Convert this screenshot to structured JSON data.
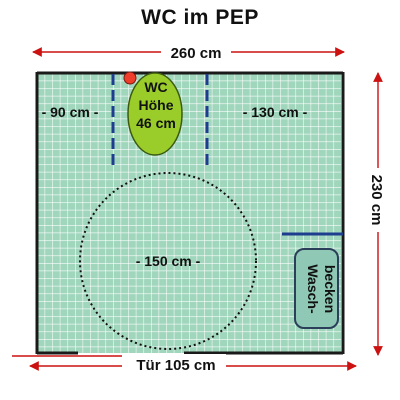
{
  "title": "WC im PEP",
  "width_label": "260 cm",
  "height_label": "230 cm",
  "left_clearance_label": "- 90 cm -",
  "right_clearance_label": "- 130 cm -",
  "turning_circle_label": "- 150 cm -",
  "wc": {
    "line1": "WC",
    "line2": "Höhe",
    "line3": "46 cm"
  },
  "sink": {
    "line1": "Wasch-",
    "line2": "becken"
  },
  "door_label": "Tür 105 cm",
  "colors": {
    "floor": "#9fd6bc",
    "tile_grid": "#ffffff",
    "wall": "#1a1a1a",
    "toilet": "#9acd2a",
    "toilet_outline": "#3b5a10",
    "grab_bar": "#1f3d8f",
    "sink": "#8fc9b5",
    "sink_outline": "#2b3f5a",
    "flush_button": "#ee3d2b",
    "dimension_arrow": "#cc1111"
  }
}
